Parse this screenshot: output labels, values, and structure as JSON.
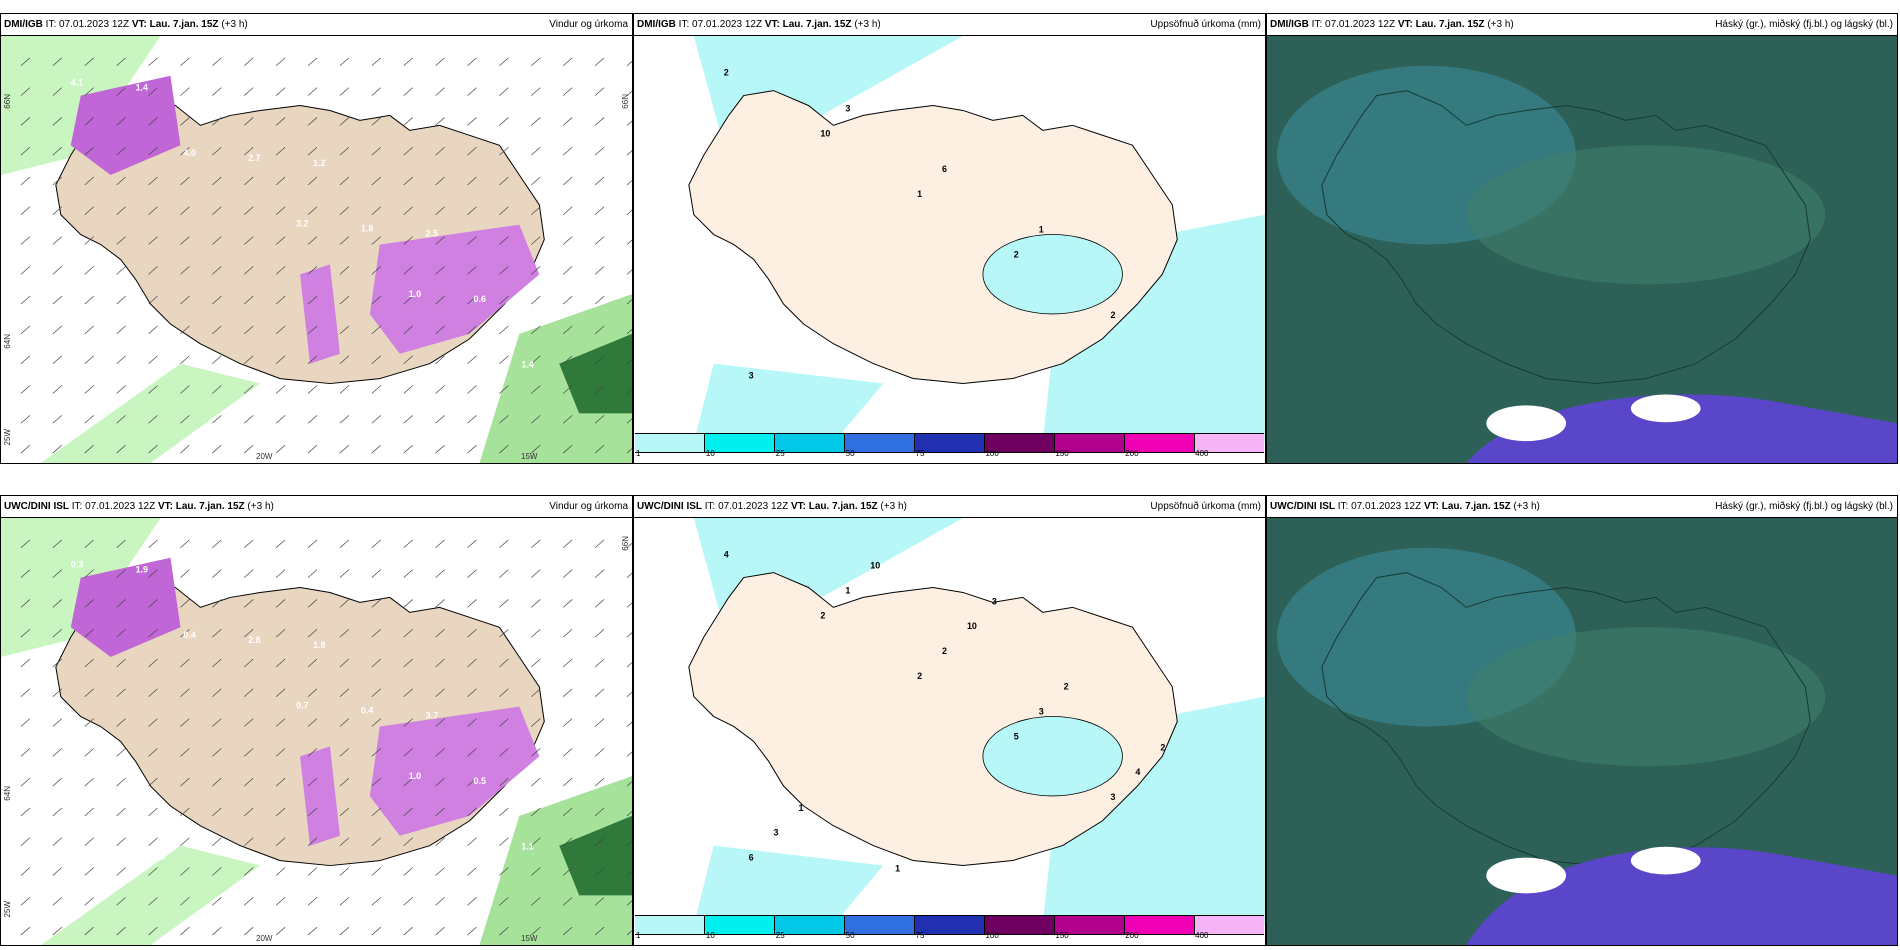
{
  "panels": [
    {
      "model": "DMI/IGB",
      "it": " IT: 07.01.2023 12Z ",
      "vt": "VT: Lau. 7.jan. 15Z",
      "lead": " (+3 h)",
      "right": "Vindur og úrkoma",
      "type": "wind"
    },
    {
      "model": "DMI/IGB",
      "it": " IT: 07.01.2023 12Z ",
      "vt": "VT: Lau. 7.jan. 15Z",
      "lead": " (+3 h)",
      "right": "Uppsöfnuð úrkoma (mm)",
      "type": "precip"
    },
    {
      "model": "DMI/IGB",
      "it": " IT: 07.01.2023 12Z ",
      "vt": "VT: Lau. 7.jan. 15Z",
      "lead": " (+3 h)",
      "right": "Háský (gr.), miðský (fj.bl.) og lágský (bl.)",
      "type": "cloud"
    },
    {
      "model": "UWC/DINI ISL",
      "it": " IT: 07.01.2023 12Z ",
      "vt": "VT: Lau. 7.jan. 15Z",
      "lead": " (+3 h)",
      "right": "Vindur og úrkoma",
      "type": "wind"
    },
    {
      "model": "UWC/DINI ISL",
      "it": " IT: 07.01.2023 12Z ",
      "vt": "VT: Lau. 7.jan. 15Z",
      "lead": " (+3 h)",
      "right": "Uppsöfnuð úrkoma (mm)",
      "type": "precip"
    },
    {
      "model": "UWC/DINI ISL",
      "it": " IT: 07.01.2023 12Z ",
      "vt": "VT: Lau. 7.jan. 15Z",
      "lead": " (+3 h)",
      "right": "Háský (gr.), miðský (fj.bl.) og lágský (bl.)",
      "type": "cloud"
    }
  ],
  "axes": {
    "lon_left": "20W",
    "lon_right": "15W",
    "lat_top": "66N",
    "lat_mid": "64N",
    "lat_bottom": "25W"
  },
  "legend": {
    "ticks": [
      "1",
      "10",
      "25",
      "50",
      "75",
      "100",
      "150",
      "200",
      "400",
      ""
    ],
    "colors": [
      "#b7f7f7",
      "#00f0f0",
      "#00c8e6",
      "#2f6fe0",
      "#2030b0",
      "#700060",
      "#b0008c",
      "#f000b4",
      "#f5b4f5"
    ]
  },
  "wind_labels_top": [
    "4.1",
    "4.0",
    "3.2",
    "1.0",
    "1.4",
    "1.4",
    "2.7",
    "1.8",
    "0.6",
    "0.5",
    "0.8",
    "1.2",
    "2.5",
    "0.3"
  ],
  "wind_labels_bottom": [
    "0.3",
    "0.4",
    "0.7",
    "1.0",
    "1.1",
    "1.9",
    "2.8",
    "0.4",
    "0.5",
    "1.5",
    "1.3",
    "1.8",
    "3.7",
    "2.2",
    "0.3"
  ],
  "precip_labels_top": [
    "2",
    "10",
    "1",
    "2",
    "2",
    "3",
    "3",
    "6",
    "1"
  ],
  "precip_labels_bottom": [
    "4",
    "2",
    "2",
    "5",
    "3",
    "6",
    "1",
    "2",
    "3",
    "4",
    "3",
    "10",
    "10",
    "2",
    "2",
    "1",
    "1",
    "3"
  ]
}
